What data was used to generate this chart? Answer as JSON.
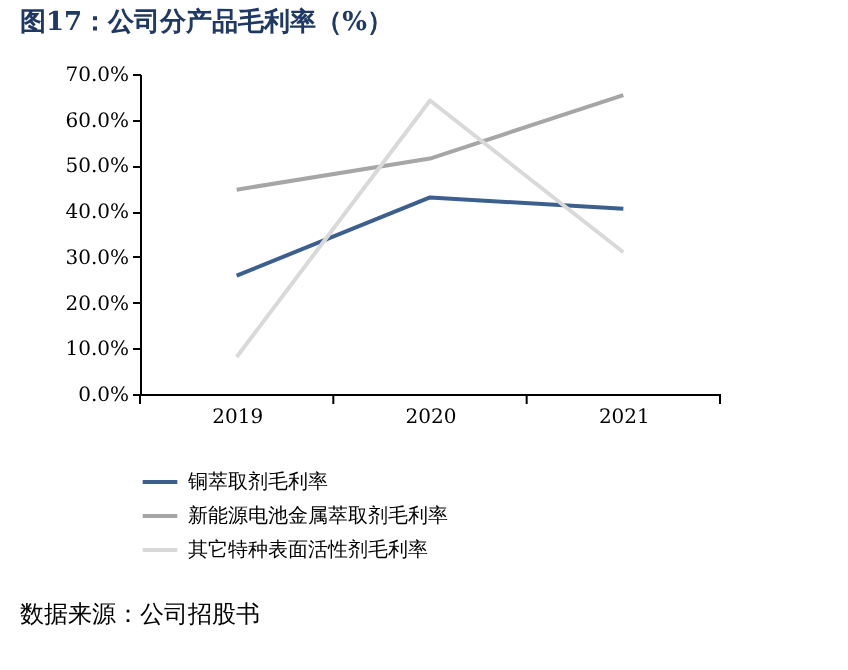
{
  "chart_data": {
    "type": "line",
    "title": "图17：公司分产品毛利率（%）",
    "categories": [
      "2019",
      "2020",
      "2021"
    ],
    "series": [
      {
        "name": "铜萃取剂毛利率",
        "color": "#3d5f8f",
        "values": [
          25.9,
          43.0,
          40.5
        ]
      },
      {
        "name": "新能源电池金属萃取剂毛利率",
        "color": "#a6a6a6",
        "values": [
          44.7,
          51.5,
          65.4
        ]
      },
      {
        "name": "其它特种表面活性剂毛利率",
        "color": "#d9d9d9",
        "values": [
          8.1,
          64.2,
          31.0
        ]
      }
    ],
    "ylim": [
      0,
      70
    ],
    "yticks": [
      {
        "value": 0,
        "label": "0.0%"
      },
      {
        "value": 10,
        "label": "10.0%"
      },
      {
        "value": 20,
        "label": "20.0%"
      },
      {
        "value": 30,
        "label": "30.0%"
      },
      {
        "value": 40,
        "label": "40.0%"
      },
      {
        "value": 50,
        "label": "50.0%"
      },
      {
        "value": 60,
        "label": "60.0%"
      },
      {
        "value": 70,
        "label": "70.0%"
      }
    ],
    "grid": false,
    "legend": "bottom",
    "marker": "none",
    "line_style": "solid",
    "annotations": [
      "数据来源：公司招股书"
    ]
  }
}
